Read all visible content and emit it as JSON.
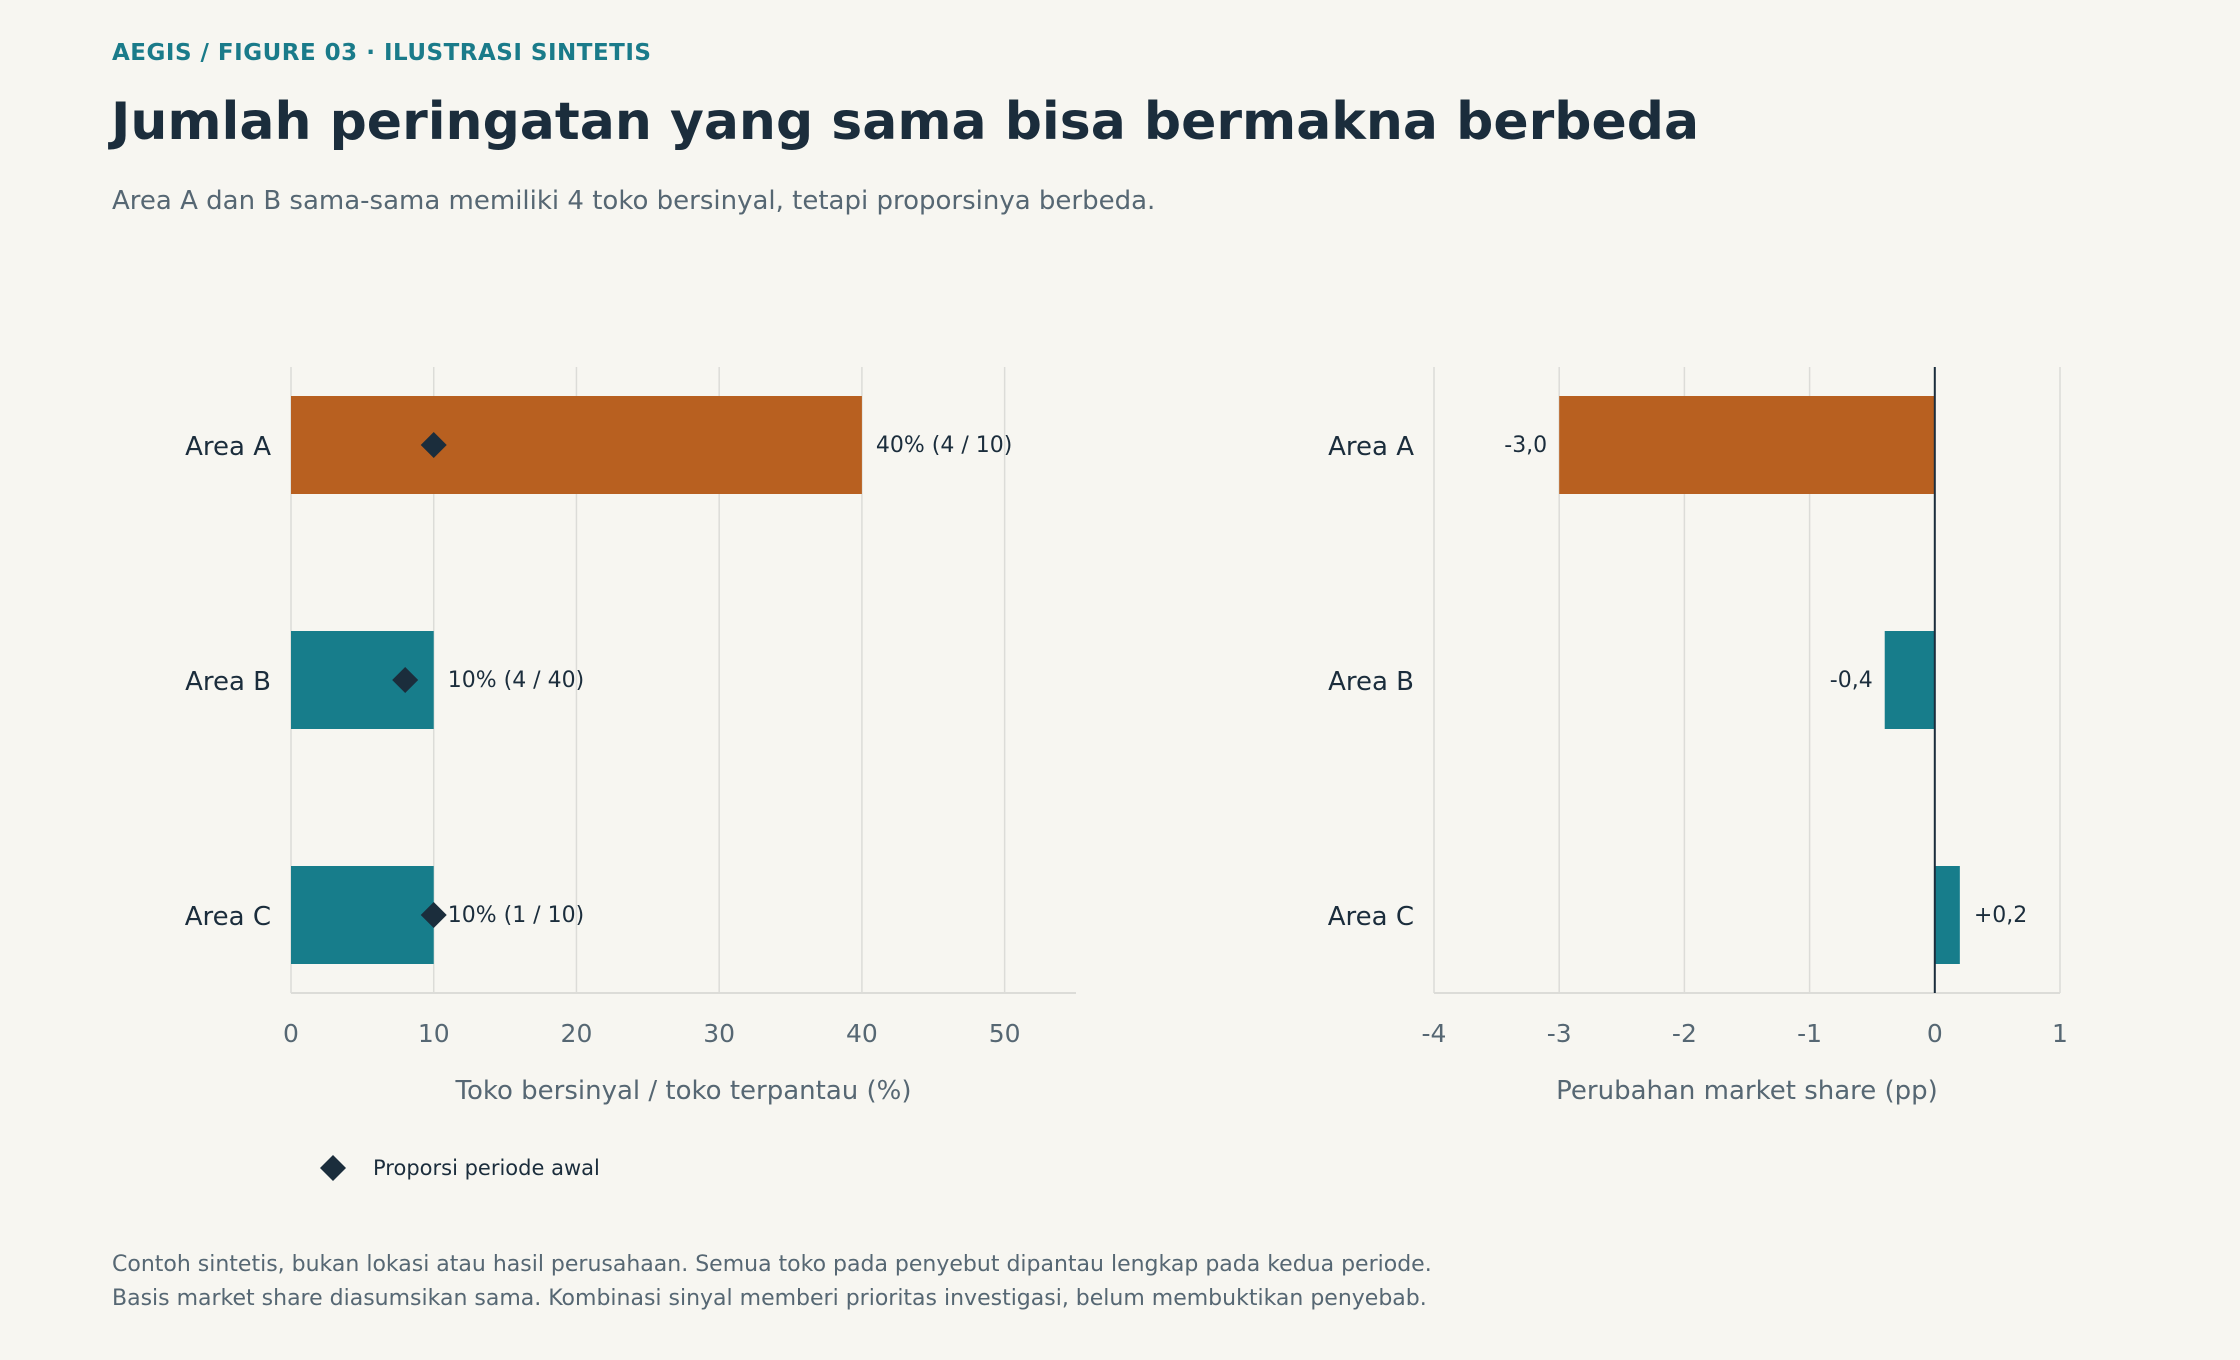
{
  "header": {
    "kicker": "AEGIS / FIGURE 03 · ILUSTRASI SINTETIS",
    "title": "Jumlah peringatan yang sama bisa bermakna berbeda",
    "subtitle": "Area A dan B sama-sama memiliki 4 toko bersinyal, tetapi proporsinya berbeda."
  },
  "colors": {
    "highlight": "#b86020",
    "base": "#177d8b",
    "marker": "#1b2d3c",
    "grid": "#dcdcd8",
    "axis_text": "#566773",
    "text": "#1b2d3c"
  },
  "chart_data": [
    {
      "type": "bar",
      "orientation": "horizontal",
      "categories": [
        "Area A",
        "Area B",
        "Area C"
      ],
      "values": [
        40,
        10,
        10
      ],
      "value_labels": [
        "40%  (4 / 10)",
        "10%  (4 / 40)",
        "10%  (1 / 10)"
      ],
      "highlight": [
        true,
        false,
        false
      ],
      "markers": {
        "name": "Proporsi periode awal",
        "values": [
          10,
          8,
          10
        ]
      },
      "xlabel": "Toko bersinyal / toko terpantau (%)",
      "xlim": [
        0,
        55
      ],
      "xticks": [
        0,
        10,
        20,
        30,
        40,
        50
      ],
      "xtick_labels": [
        "0",
        "10",
        "20",
        "30",
        "40",
        "50"
      ],
      "grid": "vertical",
      "legend_position": "bottom-left"
    },
    {
      "type": "bar",
      "orientation": "horizontal",
      "categories": [
        "Area A",
        "Area B",
        "Area C"
      ],
      "values": [
        -3.0,
        -0.4,
        0.2
      ],
      "value_labels": [
        "-3,0",
        "-0,4",
        "+0,2"
      ],
      "highlight": [
        true,
        false,
        false
      ],
      "xlabel": "Perubahan market share (pp)",
      "xlim": [
        -4,
        1
      ],
      "xticks": [
        -4,
        -3,
        -2,
        -1,
        0,
        1
      ],
      "xtick_labels": [
        "-4",
        "-3",
        "-2",
        "-1",
        "0",
        "1"
      ],
      "zero_line": true,
      "grid": "vertical"
    }
  ],
  "footnote": {
    "line1": "Contoh sintetis, bukan lokasi atau hasil perusahaan. Semua toko pada penyebut dipantau lengkap pada kedua periode.",
    "line2": "Basis market share diasumsikan sama. Kombinasi sinyal memberi prioritas investigasi, belum membuktikan penyebab."
  }
}
